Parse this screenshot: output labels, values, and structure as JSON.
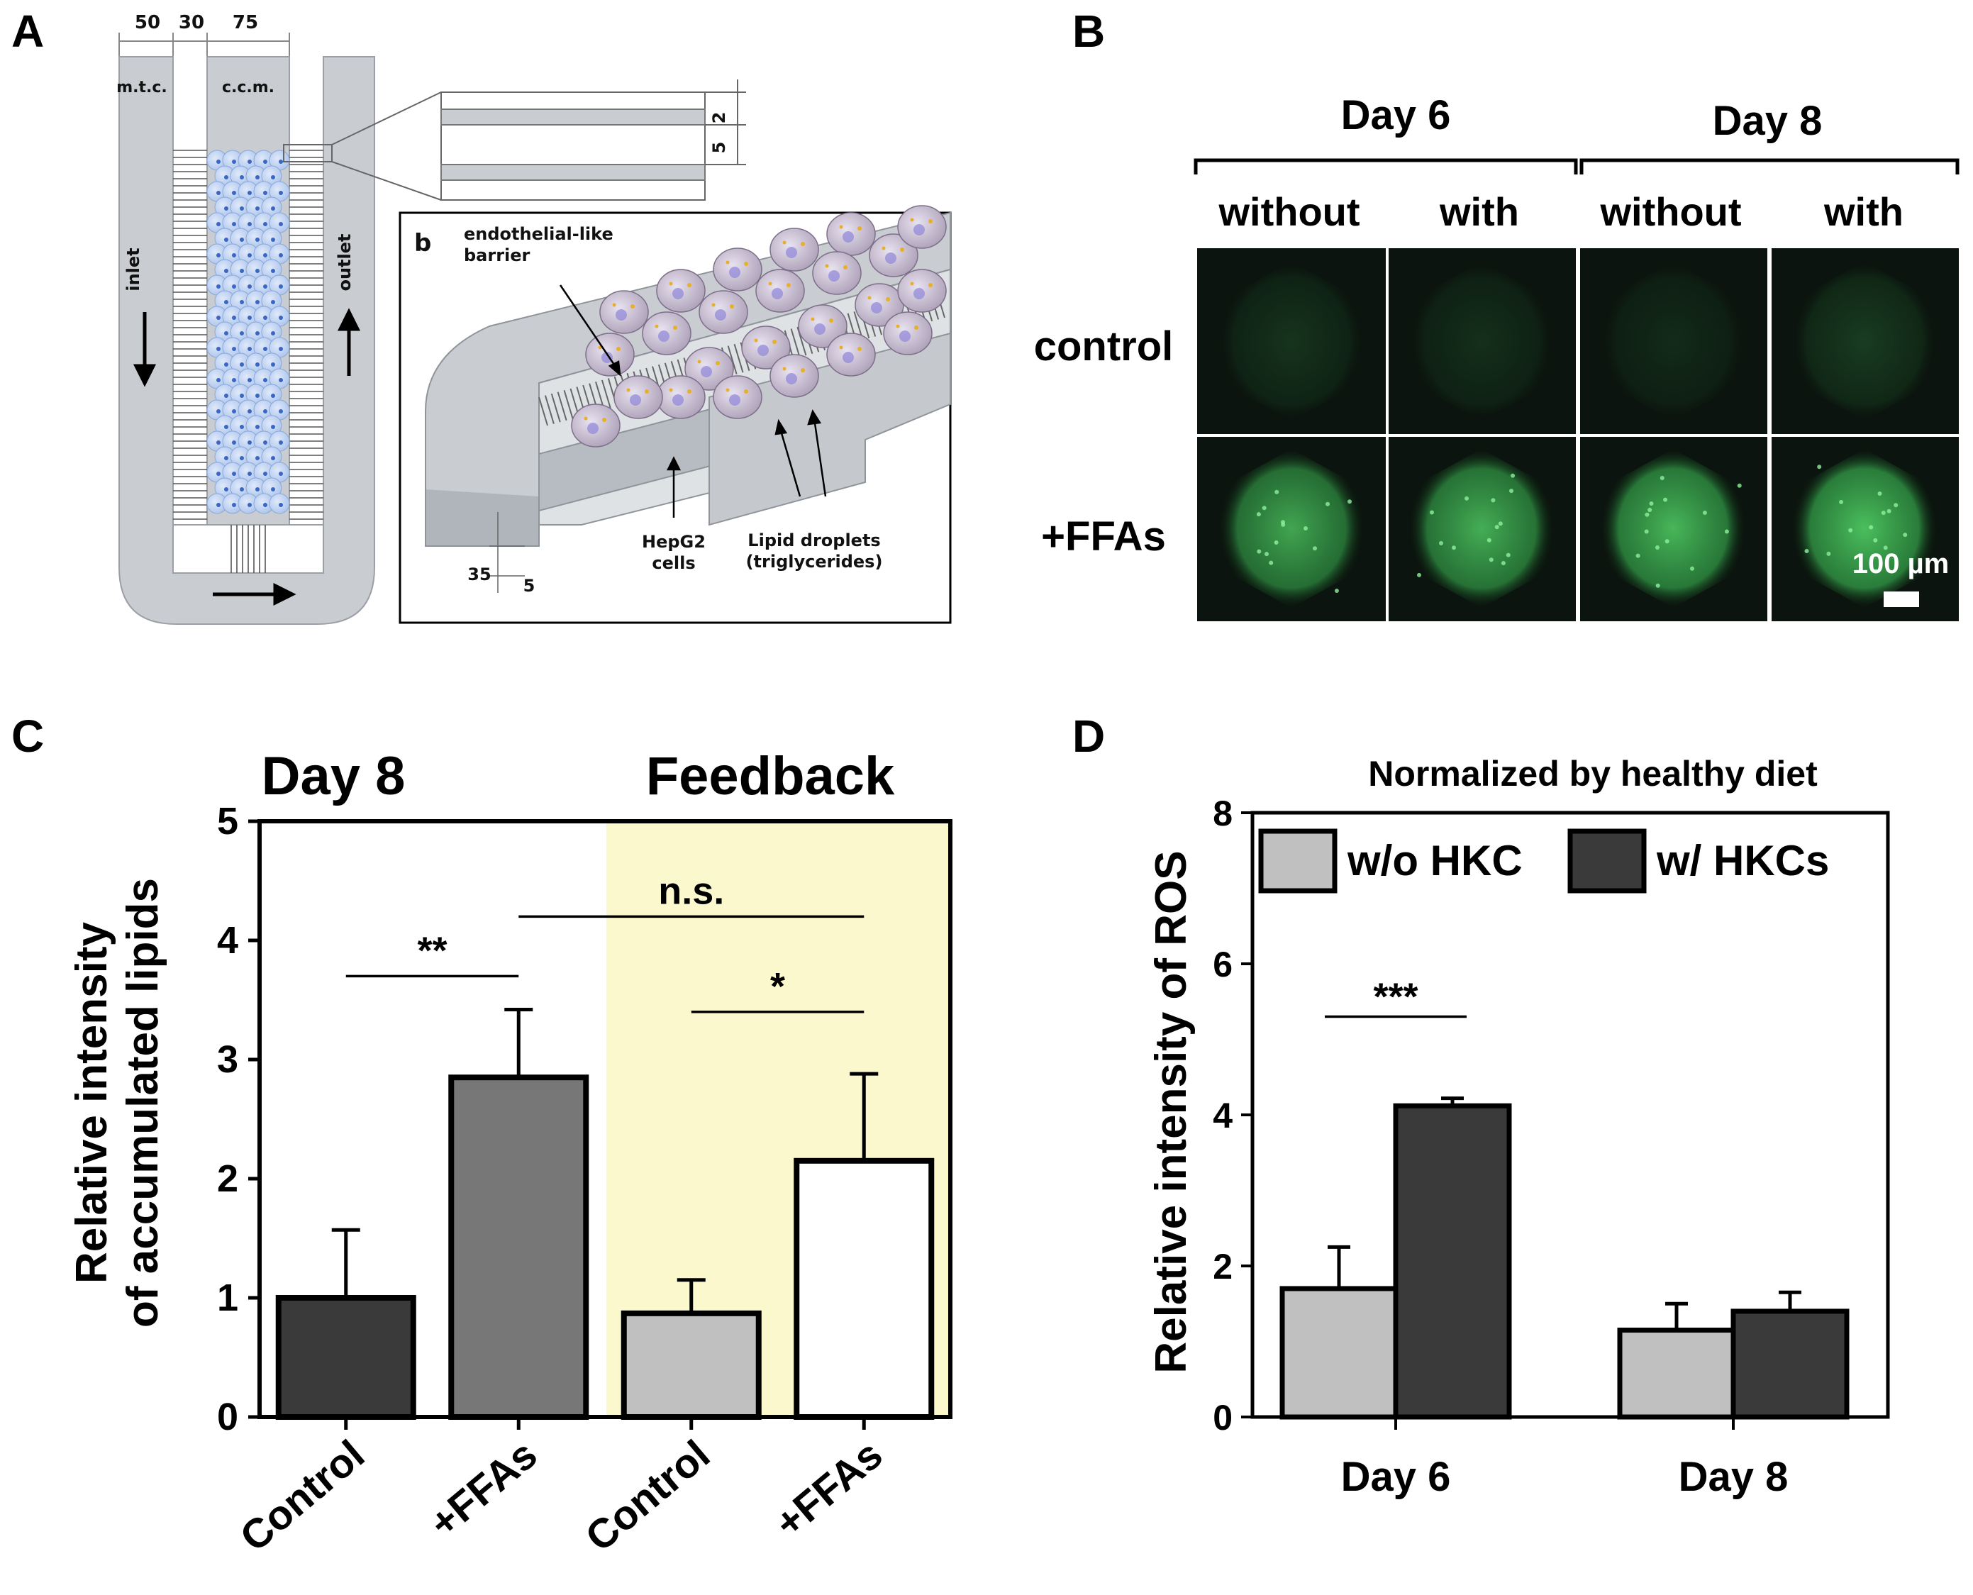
{
  "panels": {
    "A": {
      "letter": "A",
      "dims_top": [
        "50",
        "30",
        "75"
      ],
      "mtc_label": "m.t.c.",
      "ccm_label": "c.c.m.",
      "inlet_label": "inlet",
      "outlet_label": "outlet",
      "inset_dims": [
        "2",
        "5"
      ],
      "sub_letter": "b",
      "callouts": {
        "barrier_1": "endothelial-like",
        "barrier_2": "barrier",
        "hepg2_1": "HepG2",
        "hepg2_2": "cells",
        "lipid_1": "Lipid droplets",
        "lipid_2": "(triglycerides)"
      },
      "bottom_dims": [
        "35",
        "5"
      ]
    },
    "B": {
      "letter": "B",
      "day6": "Day 6",
      "day8": "Day 8",
      "columns": [
        "without",
        "with",
        "without",
        "with"
      ],
      "rows": [
        "control",
        "+FFAs"
      ],
      "scalebar": "100 µm"
    },
    "C": {
      "letter": "C",
      "header_left": "Day 8",
      "header_right": "Feedback"
    },
    "D": {
      "letter": "D"
    }
  },
  "colors": {
    "feedback_bg": "#FAF8CC",
    "dark_bar": "#3A3A3A",
    "mid_bar": "#777777",
    "light_bar": "#C0C0C0",
    "white_bar": "#FFFFFF",
    "fluorescence": "#2E9A45",
    "device_gray": "#C9CDD2",
    "cell_blue": "#BFD3F0"
  },
  "chart_data": [
    {
      "type": "bar",
      "title": "",
      "ylabel_line1": "Relative intensity",
      "ylabel_line2": "of accumulated lipids",
      "xlabel": "",
      "ylim": [
        0,
        5
      ],
      "yticks": [
        "0",
        "1",
        "2",
        "3",
        "4",
        "5"
      ],
      "categories": [
        "Control",
        "+FFAs",
        "Control",
        "+FFAs"
      ],
      "values": [
        1.0,
        2.85,
        0.87,
        2.15
      ],
      "errors": [
        0.57,
        0.57,
        0.28,
        0.73
      ],
      "bar_colors": [
        "#3A3A3A",
        "#777777",
        "#C0C0C0",
        "#FFFFFF"
      ],
      "significance": [
        {
          "label": "**",
          "from": 0,
          "to": 1,
          "y": 3.7
        },
        {
          "label": "n.s.",
          "from": 1,
          "to": 3,
          "y": 4.2
        },
        {
          "label": "*",
          "from": 2,
          "to": 3,
          "y": 3.4
        }
      ]
    },
    {
      "type": "bar",
      "title": "Normalized by healthy diet",
      "ylabel": "Relative intensity of ROS",
      "xlabel": "",
      "ylim": [
        0,
        8
      ],
      "yticks": [
        "0",
        "2",
        "4",
        "6",
        "8"
      ],
      "categories": [
        "Day 6",
        "Day 8"
      ],
      "series": [
        {
          "name": "w/o HKC",
          "values": [
            1.7,
            1.15
          ],
          "errors": [
            0.55,
            0.35
          ]
        },
        {
          "name": "w/ HKCs",
          "values": [
            4.12,
            1.4
          ],
          "errors": [
            0.1,
            0.25
          ]
        }
      ],
      "series_colors": [
        "#C0C0C0",
        "#3A3A3A"
      ],
      "legend": "top",
      "significance": [
        {
          "label": "***",
          "category": 0,
          "y": 5.3
        }
      ]
    }
  ]
}
